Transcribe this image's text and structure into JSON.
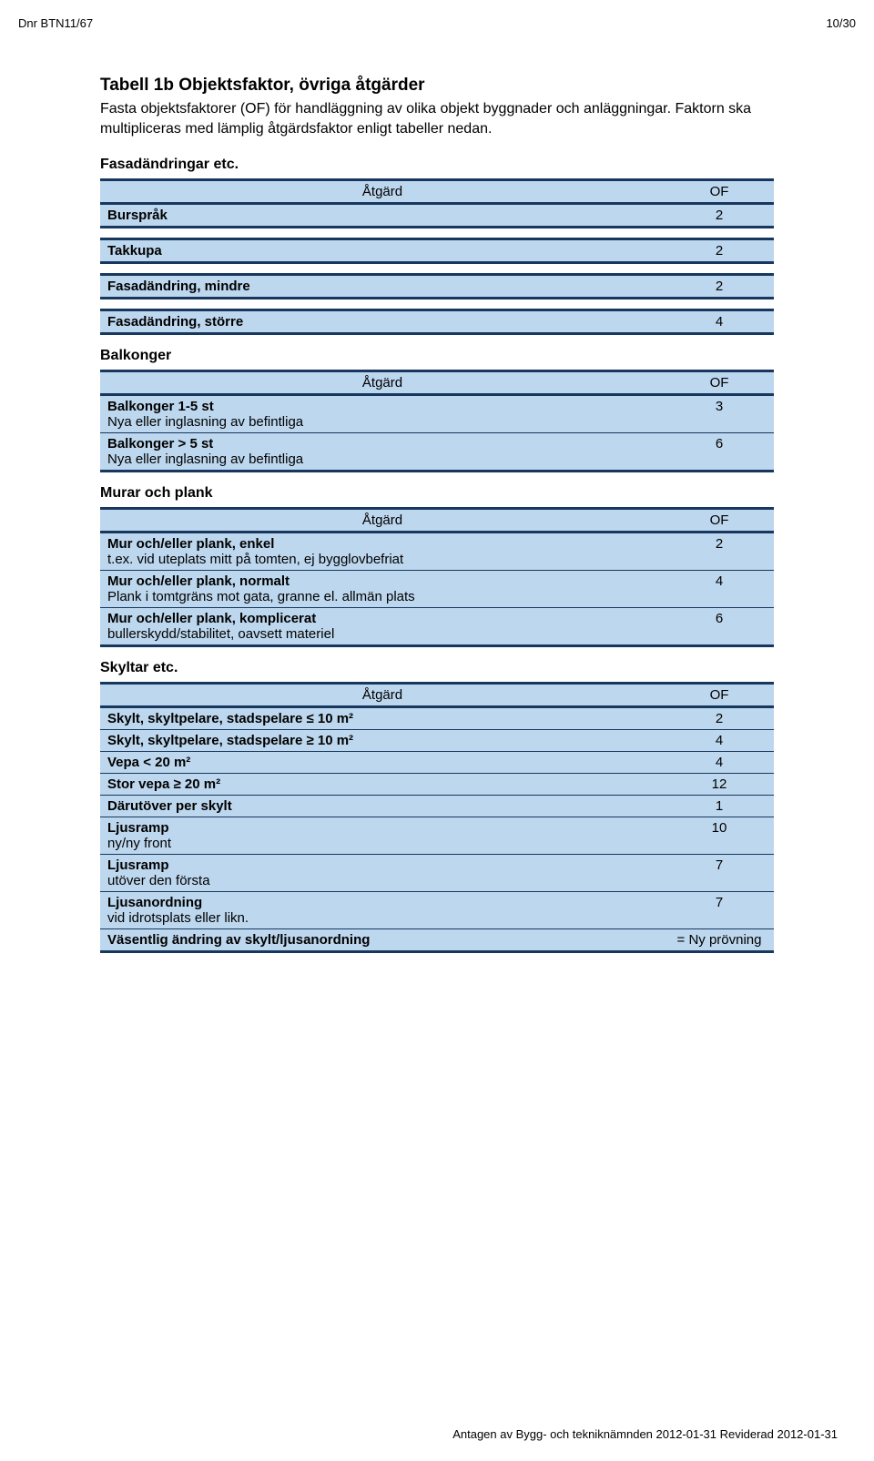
{
  "header": {
    "docnum": "Dnr BTN11/67",
    "pagenum": "10/30"
  },
  "title": "Tabell 1b Objektsfaktor, övriga åtgärder",
  "subtitle": "Fasta objektsfaktorer (OF) för handläggning av olika objekt byggnader och anläggningar. Faktorn ska multipliceras med lämplig åtgärdsfaktor enligt tabeller nedan.",
  "col_action": "Åtgärd",
  "col_of": "OF",
  "sections": {
    "fasad": {
      "heading": "Fasadändringar etc.",
      "rows": [
        {
          "label": "Burspråk",
          "of": "2"
        }
      ],
      "singles": [
        {
          "label": "Takkupa",
          "of": "2"
        },
        {
          "label": "Fasadändring, mindre",
          "of": "2"
        },
        {
          "label": "Fasadändring, större",
          "of": "4"
        }
      ]
    },
    "balkonger": {
      "heading": "Balkonger",
      "rows": [
        {
          "label": "Balkonger 1-5 st",
          "sub": "Nya eller inglasning av befintliga",
          "of": "3"
        },
        {
          "label": "Balkonger > 5 st",
          "sub": "Nya eller inglasning av befintliga",
          "of": "6"
        }
      ]
    },
    "murar": {
      "heading": "Murar och plank",
      "rows": [
        {
          "label": "Mur och/eller plank, enkel",
          "sub": "t.ex. vid uteplats mitt på tomten, ej bygglovbefriat",
          "of": "2"
        },
        {
          "label": "Mur och/eller plank, normalt",
          "sub": "Plank i tomtgräns mot gata, granne el. allmän plats",
          "of": "4"
        },
        {
          "label": "Mur och/eller plank, komplicerat",
          "sub": "bullerskydd/stabilitet, oavsett materiel",
          "of": "6"
        }
      ]
    },
    "skyltar": {
      "heading": "Skyltar etc.",
      "rows": [
        {
          "label": "Skylt, skyltpelare, stadspelare ≤ 10 m²",
          "of": "2"
        },
        {
          "label": "Skylt, skyltpelare, stadspelare ≥ 10 m²",
          "of": "4"
        },
        {
          "label": "Vepa < 20 m²",
          "of": "4"
        },
        {
          "label": "Stor vepa ≥ 20 m²",
          "of": "12"
        },
        {
          "label": "Därutöver per skylt",
          "of": "1"
        },
        {
          "label": "Ljusramp",
          "sub": "ny/ny front",
          "of": "10"
        },
        {
          "label": "Ljusramp",
          "sub": "utöver den första",
          "of": "7"
        },
        {
          "label": "Ljusanordning",
          "sub": "vid idrotsplats eller likn.",
          "of": "7"
        },
        {
          "label": "Väsentlig ändring av skylt/ljusanordning",
          "of": "= Ny prövning"
        }
      ]
    }
  },
  "footer": "Antagen av Bygg- och tekniknämnden 2012-01-31 Reviderad 2012-01-31",
  "colors": {
    "row_bg": "#bdd7ee",
    "border": "#17375e",
    "text": "#000000",
    "page_bg": "#ffffff"
  }
}
